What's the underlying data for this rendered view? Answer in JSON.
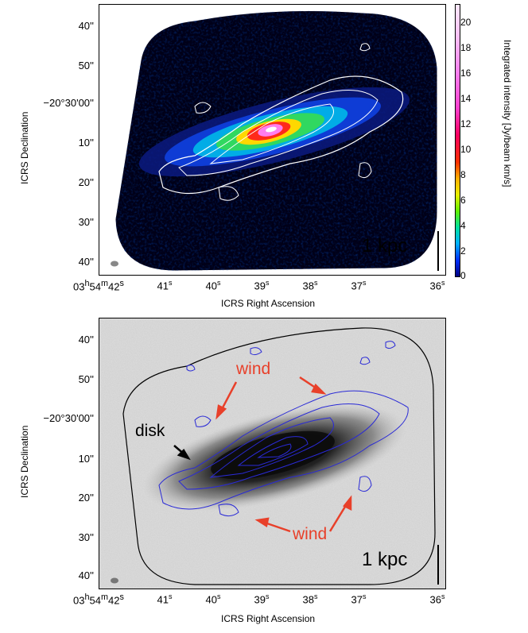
{
  "top_panel": {
    "y_ticks": [
      "40''",
      "50''",
      "−20°30'00''",
      "10''",
      "20''",
      "30''",
      "40''"
    ],
    "x_ticks": [
      {
        "main": "03",
        "h": "h",
        "m_val": "54",
        "m": "m",
        "s_val": "42",
        "s": "s"
      },
      {
        "s_val": "41",
        "s": "s"
      },
      {
        "s_val": "40",
        "s": "s"
      },
      {
        "s_val": "39",
        "s": "s"
      },
      {
        "s_val": "38",
        "s": "s"
      },
      {
        "s_val": "37",
        "s": "s"
      },
      {
        "s_val": "36",
        "s": "s"
      }
    ],
    "xlabel": "ICRS Right Ascension",
    "ylabel": "ICRS Declination",
    "scale_bar": "1 kpc",
    "colorbar_label": "Integrated intensity [Jy/beam km/s]",
    "colorbar_ticks": [
      "0",
      "2",
      "4",
      "6",
      "8",
      "10",
      "12",
      "14",
      "16",
      "18",
      "20"
    ]
  },
  "bottom_panel": {
    "y_ticks": [
      "40''",
      "50''",
      "−20°30'00''",
      "10''",
      "20''",
      "30''",
      "40''"
    ],
    "xlabel": "ICRS Right Ascension",
    "ylabel": "ICRS Declination",
    "scale_bar": "1 kpc",
    "annotations": {
      "wind_top": "wind",
      "wind_bottom": "wind",
      "disk": "disk"
    }
  },
  "colors": {
    "annotation_red": "#e8402a",
    "contour_blue": "#2a2ad6",
    "map_background": "#000018"
  }
}
